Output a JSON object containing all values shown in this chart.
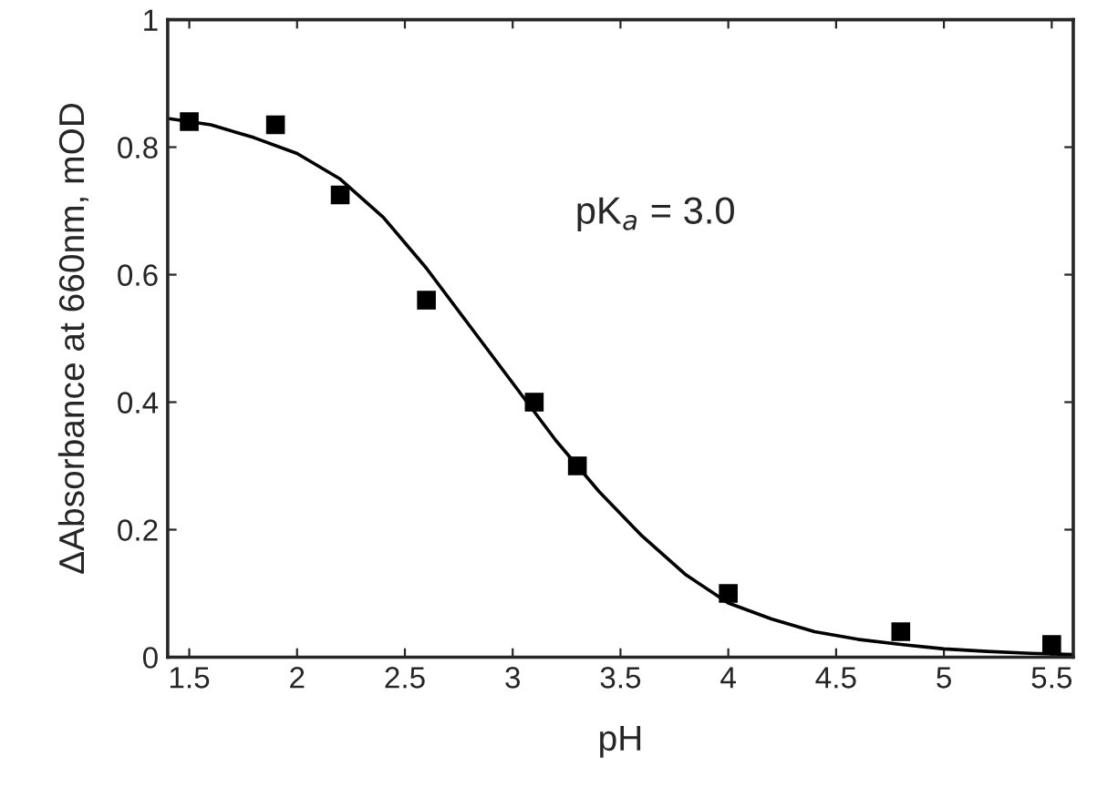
{
  "chart_data": {
    "type": "scatter",
    "xlabel": "pH",
    "ylabel": "ΔAbsorbance at 660nm, mOD",
    "annotations": [
      "pK$_{a}$ = 3.0"
    ],
    "xlim": [
      1.4,
      5.6
    ],
    "ylim": [
      0,
      1
    ],
    "xticks": [
      1.5,
      2,
      2.5,
      3,
      3.5,
      4,
      4.5,
      5,
      5.5
    ],
    "yticks": [
      0,
      0.2,
      0.4,
      0.6,
      0.8,
      1
    ],
    "grid": false,
    "series": [
      {
        "color": "#000000",
        "marker": "square",
        "x": [
          1.5,
          1.9,
          2.2,
          2.6,
          3.1,
          3.3,
          4.0,
          4.8,
          5.5
        ],
        "values": [
          0.84,
          0.835,
          0.725,
          0.56,
          0.4,
          0.3,
          0.1,
          0.04,
          0.02
        ]
      },
      {
        "type": "line",
        "marker": "none",
        "color": "#000000",
        "x": [
          1.4,
          1.6,
          1.8,
          2.0,
          2.2,
          2.4,
          2.6,
          2.8,
          3.0,
          3.2,
          3.4,
          3.6,
          3.8,
          4.0,
          4.2,
          4.4,
          4.6,
          4.8,
          5.0,
          5.2,
          5.4,
          5.6
        ],
        "values": [
          0.845,
          0.835,
          0.815,
          0.79,
          0.75,
          0.69,
          0.61,
          0.52,
          0.43,
          0.34,
          0.26,
          0.19,
          0.13,
          0.085,
          0.06,
          0.04,
          0.028,
          0.02,
          0.013,
          0.009,
          0.006,
          0.004
        ]
      }
    ]
  }
}
